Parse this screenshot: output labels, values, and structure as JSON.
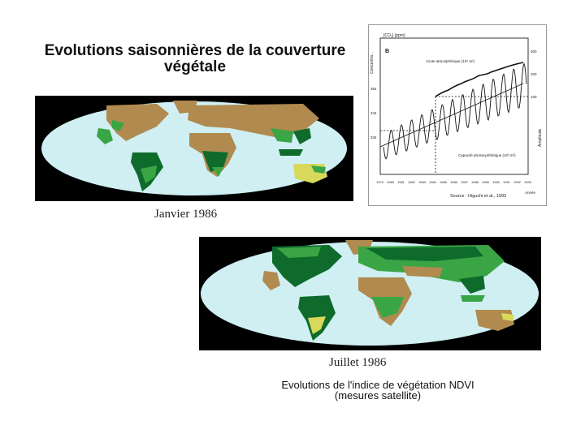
{
  "slide": {
    "title_line1": "Evolutions saisonnières de la couverture",
    "title_line2": "végétale",
    "caption_january": "Janvier 1986",
    "caption_july": "Juillet 1986",
    "description_line1": "Evolutions de l'indice de végétation NDVI",
    "description_line2": "(mesures satellite)"
  },
  "co2_chart": {
    "panel_label": "B",
    "y_label_left": "[CO₂] (ppm)",
    "y_label_left2": "Concentra...",
    "y_label_right": "Amplitude",
    "series_atmospheric": "Azote atmosphérique (10⁹ m²)",
    "series_captured": "Capacité photosynthétique (10³ m²)",
    "source": "Source : Higuchi et al., 1993",
    "x_axis_word": "Année",
    "left_ticks": [
      "354",
      "344",
      "334"
    ],
    "right_ticks": [
      "300",
      "200",
      "100"
    ],
    "x_ticks": [
      "1979",
      "1980",
      "1981",
      "1982",
      "1983",
      "1984",
      "1985",
      "1986",
      "1987",
      "1988",
      "1989",
      "1990",
      "1991",
      "1992",
      "1993"
    ]
  },
  "colors": {
    "ocean": "#cfeff3",
    "arid": "#b08a4f",
    "low_veg": "#d8d85a",
    "mid_veg": "#3aa544",
    "dense_veg": "#0e6b2c"
  }
}
